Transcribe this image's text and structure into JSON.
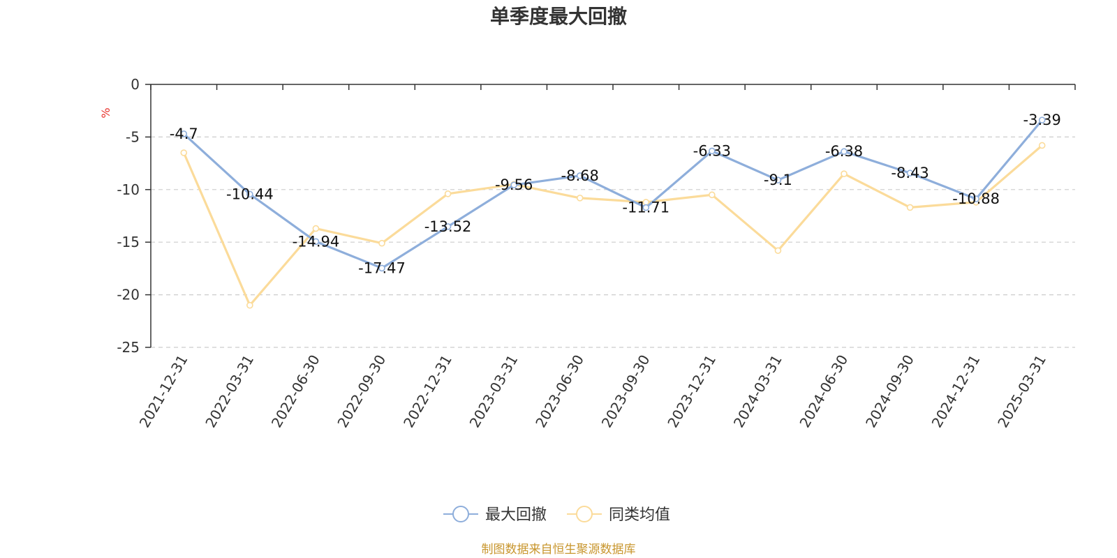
{
  "chart_data": {
    "type": "line",
    "title": "单季度最大回撤",
    "ylabel": "%",
    "ylim": [
      -25,
      0
    ],
    "yticks": [
      0,
      -5,
      -10,
      -15,
      -20,
      -25
    ],
    "grid": true,
    "legend_position": "bottom",
    "categories": [
      "2021-12-31",
      "2022-03-31",
      "2022-06-30",
      "2022-09-30",
      "2022-12-31",
      "2023-03-31",
      "2023-06-30",
      "2023-09-30",
      "2023-12-31",
      "2024-03-31",
      "2024-06-30",
      "2024-09-30",
      "2024-12-31",
      "2025-03-31"
    ],
    "series": [
      {
        "name": "最大回撤",
        "color": "#8eaedb",
        "values": [
          -4.7,
          -10.44,
          -14.94,
          -17.47,
          -13.52,
          -9.56,
          -8.68,
          -11.71,
          -6.33,
          -9.1,
          -6.38,
          -8.43,
          -10.88,
          -3.39
        ],
        "labels": [
          "-4.7",
          "-10.44",
          "-14.94",
          "-17.47",
          "-13.52",
          "-9.56",
          "-8.68",
          "-11.71",
          "-6.33",
          "-9.1",
          "-6.38",
          "-8.43",
          "-10.88",
          "-3.39"
        ]
      },
      {
        "name": "同类均值",
        "color": "#fbdb9a",
        "values": [
          -6.5,
          -21.0,
          -13.7,
          -15.1,
          -10.4,
          -9.5,
          -10.8,
          -11.2,
          -10.5,
          -15.8,
          -8.5,
          -11.7,
          -11.2,
          -5.8
        ]
      }
    ],
    "source": "制图数据来自恒生聚源数据库"
  },
  "colors": {
    "axis": "#333333",
    "grid": "#cccccc",
    "unit": "#e8302a",
    "source": "#c8962e"
  }
}
